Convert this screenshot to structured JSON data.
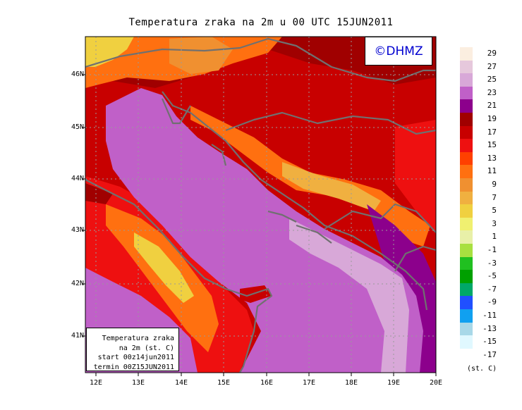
{
  "title": "Temperatura zraka na 2m u 00 UTC 15JUN2011",
  "copyright": "©DHMZ",
  "info_box": {
    "line1": "Temperatura zraka",
    "line2": "na 2m (st. C)",
    "line3": "start 00z14jun2011",
    "line4": "termin 00Z15JUN2011"
  },
  "axes": {
    "lat_labels": [
      "46N",
      "45N",
      "44N",
      "43N",
      "42N",
      "41N"
    ],
    "lon_labels": [
      "12E",
      "13E",
      "14E",
      "15E",
      "16E",
      "17E",
      "18E",
      "19E",
      "20E"
    ]
  },
  "legend": {
    "units": "(st. C)",
    "levels": [
      {
        "label": "29",
        "color": "#fbeee0"
      },
      {
        "label": "27",
        "color": "#e6c8dc"
      },
      {
        "label": "25",
        "color": "#d8a8d8"
      },
      {
        "label": "23",
        "color": "#c060c8"
      },
      {
        "label": "21",
        "color": "#8c008c"
      },
      {
        "label": "19",
        "color": "#a00000"
      },
      {
        "label": "17",
        "color": "#c80000"
      },
      {
        "label": "15",
        "color": "#ee1010"
      },
      {
        "label": "13",
        "color": "#ff4000"
      },
      {
        "label": "11",
        "color": "#ff7010"
      },
      {
        "label": "9",
        "color": "#f09030"
      },
      {
        "label": "7",
        "color": "#f0b040"
      },
      {
        "label": "5",
        "color": "#f0d040"
      },
      {
        "label": "3",
        "color": "#f0f070"
      },
      {
        "label": "1",
        "color": "#e8f0a8"
      },
      {
        "label": "-1",
        "color": "#a8e040"
      },
      {
        "label": "-3",
        "color": "#20c020"
      },
      {
        "label": "-5",
        "color": "#00a000"
      },
      {
        "label": "-7",
        "color": "#00a868"
      },
      {
        "label": "-9",
        "color": "#2050ff"
      },
      {
        "label": "-11",
        "color": "#10a0f0"
      },
      {
        "label": "-13",
        "color": "#a8d8e8"
      },
      {
        "label": "-15",
        "color": "#e0f8ff"
      },
      {
        "label": "-17",
        "color": ""
      }
    ]
  }
}
